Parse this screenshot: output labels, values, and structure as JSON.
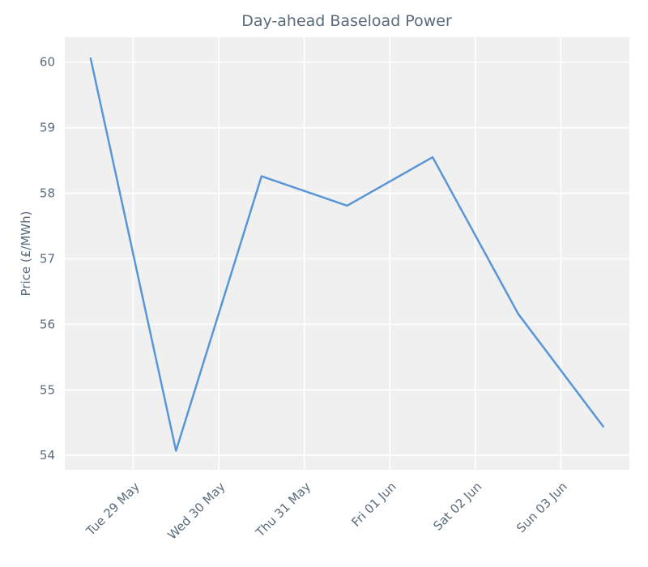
{
  "chart_data": {
    "type": "line",
    "title": "Day-ahead Baseload Power",
    "ylabel": "Price (£/MWh)",
    "x": [
      0.5,
      1.5,
      2.5,
      3.5,
      4.5,
      5.5,
      6.5
    ],
    "values": [
      60.07,
      54.07,
      58.26,
      57.81,
      58.55,
      56.16,
      54.43
    ],
    "color": "#5a96d6",
    "xlim": [
      0.2,
      6.8
    ],
    "xticks": [
      {
        "value": 1,
        "label": "Tue 29 May"
      },
      {
        "value": 2,
        "label": "Wed 30 May"
      },
      {
        "value": 3,
        "label": "Thu 31 May"
      },
      {
        "value": 4,
        "label": "Fri 01 Jun"
      },
      {
        "value": 5,
        "label": "Sat 02 Jun"
      },
      {
        "value": 6,
        "label": "Sun 03 Jun"
      }
    ],
    "ylim": [
      53.78,
      60.38
    ],
    "yticks": [
      54,
      55,
      56,
      57,
      58,
      59,
      60
    ],
    "grid": true
  }
}
